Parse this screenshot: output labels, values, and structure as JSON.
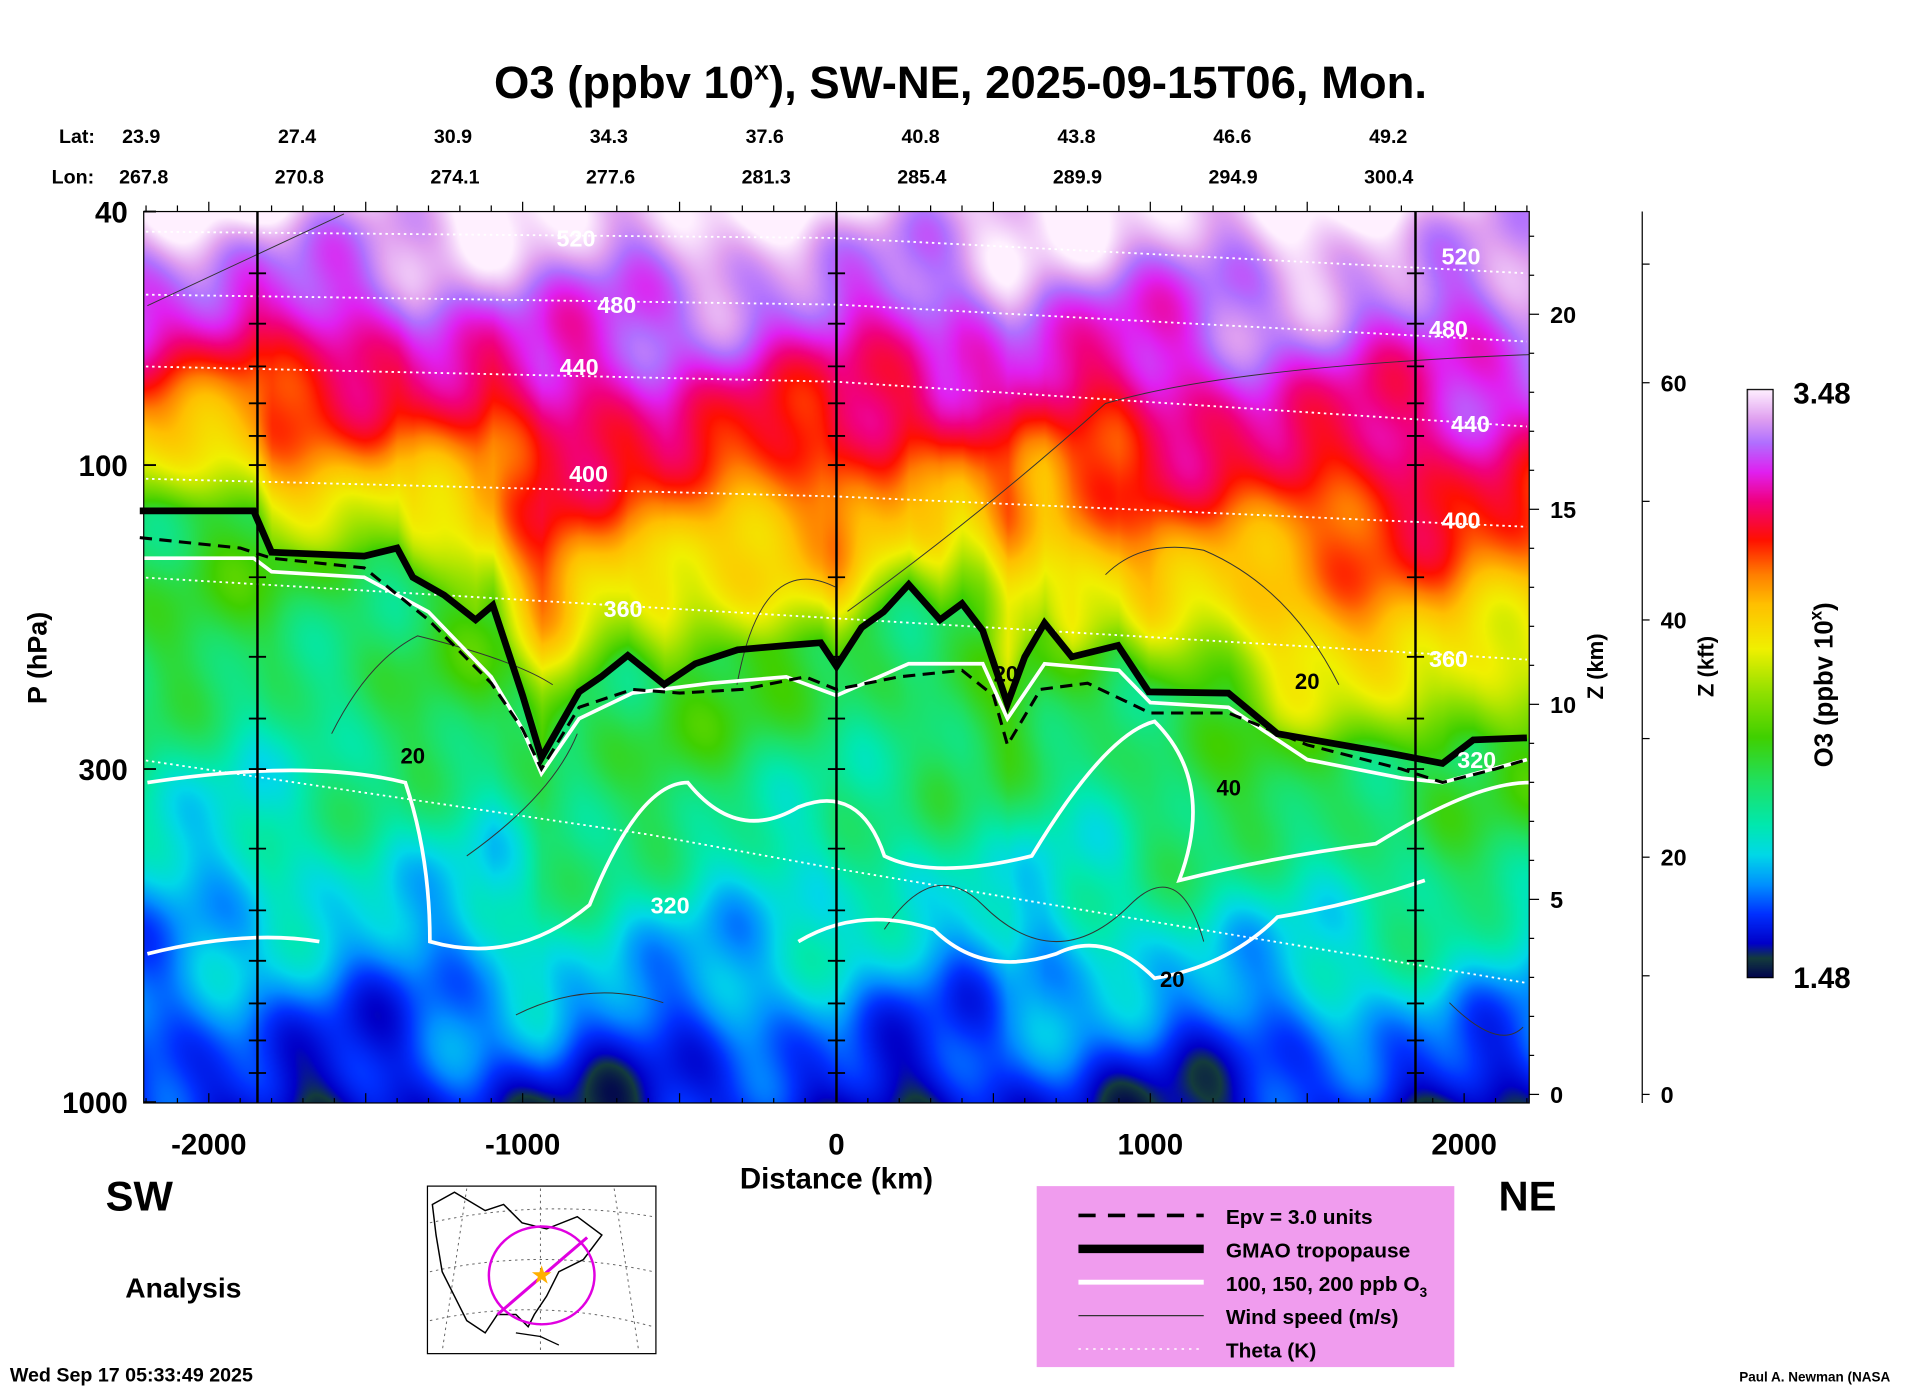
{
  "header": {
    "title_pre": "O3 (ppbv 10",
    "title_sup": "x",
    "title_post": "), SW-NE, 2025-09-15T06, Mon.",
    "lat_label": "Lat:",
    "lon_label": "Lon:",
    "lats": [
      "23.9",
      "27.4",
      "30.9",
      "34.3",
      "37.6",
      "40.8",
      "43.8",
      "46.6",
      "49.2"
    ],
    "lons": [
      "267.8",
      "270.8",
      "274.1",
      "277.6",
      "281.3",
      "285.4",
      "289.9",
      "294.9",
      "300.4"
    ]
  },
  "labels": {
    "sw": "SW",
    "ne": "NE",
    "analysis": "Analysis",
    "timestamp": "Wed Sep 17 05:33:49 2025",
    "credit": "Paul A. Newman (NASA"
  },
  "legend": {
    "items": [
      {
        "label": "Epv = 3.0 units",
        "style": "dashed"
      },
      {
        "label": "GMAO tropopause",
        "style": "thick"
      },
      {
        "label": "100, 150, 200 ppb O",
        "sub": "3",
        "style": "white"
      },
      {
        "label": "Wind speed (m/s)",
        "style": "thin"
      },
      {
        "label": "Theta (K)",
        "style": "dotted"
      }
    ],
    "background": "#f09cee"
  },
  "chart_data": {
    "type": "heatmap",
    "title": "O3 (ppbv 10^x), SW-NE, 2025-09-15T06, Mon.",
    "xlabel": "Distance (km)",
    "ylabel": "P (hPa)",
    "y2label": "Z (km)",
    "y3label": "Z (kft)",
    "xlim": [
      -2220,
      2200
    ],
    "ylim": [
      1000,
      40
    ],
    "yscale": "log",
    "xticks": [
      "-2000",
      "-1000",
      "0",
      "1000",
      "2000"
    ],
    "xtick_values": [
      -2000,
      -1000,
      0,
      1000,
      2000
    ],
    "yticks": [
      "40",
      "100",
      "300",
      "1000"
    ],
    "ytick_values": [
      40,
      100,
      300,
      1000
    ],
    "zkm_ticks": [
      "0",
      "5",
      "10",
      "15",
      "20"
    ],
    "zkm_values": [
      0,
      5,
      10,
      15,
      20
    ],
    "zkft_ticks": [
      "0",
      "20",
      "40",
      "60"
    ],
    "zkft_values": [
      0,
      20,
      40,
      60
    ],
    "section_markers_km": [
      -1845,
      0,
      1845
    ],
    "colorbar": {
      "label_pre": "O3 (ppbv 10",
      "label_sup": "x",
      "label_post": ")",
      "min": "1.48",
      "max": "3.48"
    },
    "tropopause": [
      [
        -2220,
        118
      ],
      [
        -1857,
        118
      ],
      [
        -1800,
        137
      ],
      [
        -1505,
        139
      ],
      [
        -1400,
        135
      ],
      [
        -1350,
        150
      ],
      [
        -1250,
        160
      ],
      [
        -1150,
        175
      ],
      [
        -1095,
        166
      ],
      [
        -1000,
        230
      ],
      [
        -940,
        288
      ],
      [
        -820,
        227
      ],
      [
        -750,
        215
      ],
      [
        -665,
        199
      ],
      [
        -549,
        221
      ],
      [
        -450,
        205
      ],
      [
        -315,
        195
      ],
      [
        -160,
        192
      ],
      [
        -50,
        190
      ],
      [
        0,
        207
      ],
      [
        80,
        180
      ],
      [
        150,
        170
      ],
      [
        230,
        154
      ],
      [
        330,
        175
      ],
      [
        400,
        165
      ],
      [
        466,
        182
      ],
      [
        545,
        237
      ],
      [
        600,
        200
      ],
      [
        663,
        177
      ],
      [
        750,
        200
      ],
      [
        897,
        192
      ],
      [
        995,
        227
      ],
      [
        1249,
        228
      ],
      [
        1405,
        264
      ],
      [
        1756,
        283
      ],
      [
        1931,
        294
      ],
      [
        2029,
        270
      ],
      [
        2200,
        268
      ]
    ],
    "epv_3": [
      [
        -2220,
        130
      ],
      [
        -1900,
        135
      ],
      [
        -1800,
        140
      ],
      [
        -1505,
        145
      ],
      [
        -1300,
        175
      ],
      [
        -1100,
        220
      ],
      [
        -1000,
        260
      ],
      [
        -940,
        300
      ],
      [
        -820,
        240
      ],
      [
        -650,
        225
      ],
      [
        -500,
        228
      ],
      [
        -300,
        225
      ],
      [
        -100,
        215
      ],
      [
        0,
        225
      ],
      [
        200,
        215
      ],
      [
        400,
        210
      ],
      [
        500,
        230
      ],
      [
        545,
        275
      ],
      [
        650,
        225
      ],
      [
        800,
        220
      ],
      [
        1000,
        245
      ],
      [
        1249,
        245
      ],
      [
        1500,
        275
      ],
      [
        1800,
        300
      ],
      [
        1931,
        315
      ],
      [
        2100,
        300
      ],
      [
        2200,
        290
      ]
    ],
    "o3_100ppb": [
      [
        -2220,
        140
      ],
      [
        -1857,
        140
      ],
      [
        -1800,
        147
      ],
      [
        -1505,
        150
      ],
      [
        -1300,
        170
      ],
      [
        -1100,
        215
      ],
      [
        -1000,
        260
      ],
      [
        -940,
        305
      ],
      [
        -820,
        250
      ],
      [
        -650,
        228
      ],
      [
        -400,
        220
      ],
      [
        -160,
        215
      ],
      [
        0,
        230
      ],
      [
        230,
        205
      ],
      [
        466,
        205
      ],
      [
        545,
        250
      ],
      [
        663,
        205
      ],
      [
        900,
        210
      ],
      [
        1000,
        236
      ],
      [
        1249,
        240
      ],
      [
        1500,
        290
      ],
      [
        1800,
        310
      ],
      [
        1931,
        315
      ],
      [
        2200,
        290
      ]
    ],
    "theta": [
      {
        "level": "520",
        "points": [
          [
            -2220,
            43
          ],
          [
            0,
            44
          ],
          [
            2200,
            50
          ]
        ]
      },
      {
        "level": "480",
        "points": [
          [
            -2220,
            54
          ],
          [
            0,
            56
          ],
          [
            2200,
            64
          ]
        ]
      },
      {
        "level": "440",
        "points": [
          [
            -2220,
            70
          ],
          [
            0,
            74
          ],
          [
            2200,
            87
          ]
        ]
      },
      {
        "level": "400",
        "points": [
          [
            -2220,
            105
          ],
          [
            0,
            112
          ],
          [
            2200,
            125
          ]
        ]
      },
      {
        "level": "360",
        "points": [
          [
            -2220,
            150
          ],
          [
            0,
            174
          ],
          [
            2200,
            202
          ]
        ]
      },
      {
        "level": "320",
        "points": [
          [
            -2220,
            290
          ],
          [
            -600,
            380
          ],
          [
            0,
            430
          ],
          [
            1000,
            520
          ],
          [
            2200,
            650
          ]
        ]
      }
    ],
    "theta_labels": [
      {
        "text": "520",
        "d": -830,
        "p": 44
      },
      {
        "text": "480",
        "d": -700,
        "p": 56
      },
      {
        "text": "440",
        "d": -820,
        "p": 70
      },
      {
        "text": "400",
        "d": -790,
        "p": 103
      },
      {
        "text": "360",
        "d": -680,
        "p": 168
      },
      {
        "text": "320",
        "d": -530,
        "p": 490
      },
      {
        "text": "520",
        "d": 1990,
        "p": 47
      },
      {
        "text": "480",
        "d": 1950,
        "p": 61
      },
      {
        "text": "440",
        "d": 2020,
        "p": 86
      },
      {
        "text": "400",
        "d": 1990,
        "p": 122
      },
      {
        "text": "360",
        "d": 1950,
        "p": 201
      },
      {
        "text": "320",
        "d": 2040,
        "p": 290
      }
    ],
    "wind_labels": [
      {
        "text": "20",
        "d": -1350,
        "p": 285
      },
      {
        "text": "20",
        "d": 540,
        "p": 212
      },
      {
        "text": "20",
        "d": 1500,
        "p": 218
      },
      {
        "text": "40",
        "d": 1250,
        "p": 320
      },
      {
        "text": "20",
        "d": 1070,
        "p": 640
      }
    ]
  }
}
